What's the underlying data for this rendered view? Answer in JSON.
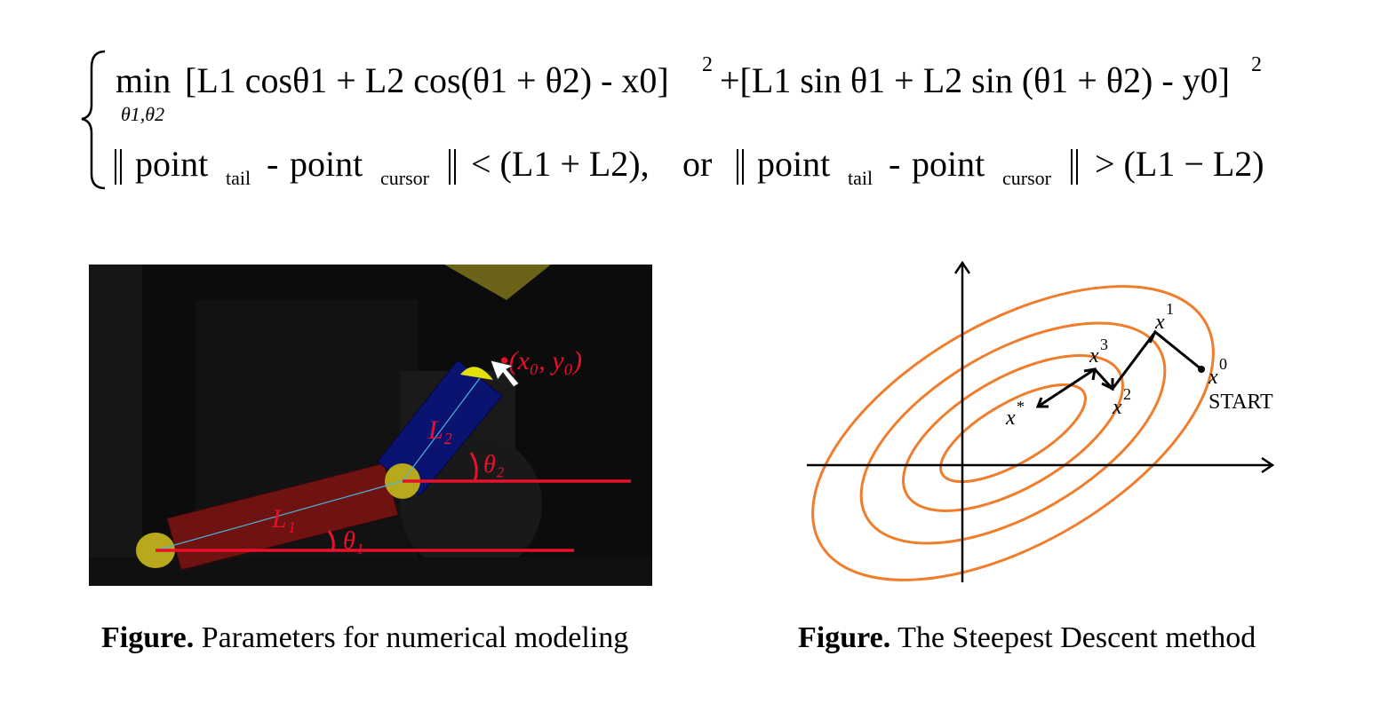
{
  "equation": {
    "line1": {
      "min": "min",
      "min_sub": "θ1,θ2",
      "term1": "[L1 cosθ1 + L2 cos(θ1 + θ2) - x0]",
      "exp1": "2",
      "term2": "+[L1 sin θ1 + L2 sin (θ1 + θ2) - y0]",
      "exp2": "2"
    },
    "line2": {
      "point": "point",
      "tail": "tail",
      "cursor": "cursor",
      "minus": "-",
      "lt": "< (L1 + L2),",
      "or": "or",
      "gt": "> (L1 − L2)"
    }
  },
  "figure_left": {
    "annotations": {
      "target": "•(x₀, y₀)",
      "L1": "L₁",
      "L2": "L₂",
      "theta1": "θ₁",
      "theta2": "θ₂"
    },
    "colors": {
      "background": "#0c0c0c",
      "link1": "#6e1212",
      "link2": "#0a1470",
      "joint": "#b8a81c",
      "annotation": "#e8102a",
      "centerline": "#4fb3d8"
    }
  },
  "figure_right": {
    "labels": {
      "x0": "x",
      "x0_sup": "0",
      "start": "START",
      "x1": "x",
      "x1_sup": "1",
      "x2": "x",
      "x2_sup": "2",
      "x3": "x",
      "x3_sup": "3",
      "xstar": "x",
      "xstar_sup": "*"
    },
    "colors": {
      "contour": "#ef7d2c",
      "axes": "#000000",
      "path": "#000000"
    }
  },
  "captions": {
    "left": {
      "lead": "Figure.",
      "text": " Parameters for numerical modeling"
    },
    "right": {
      "lead": "Figure.",
      "text": " The Steepest Descent method"
    }
  }
}
